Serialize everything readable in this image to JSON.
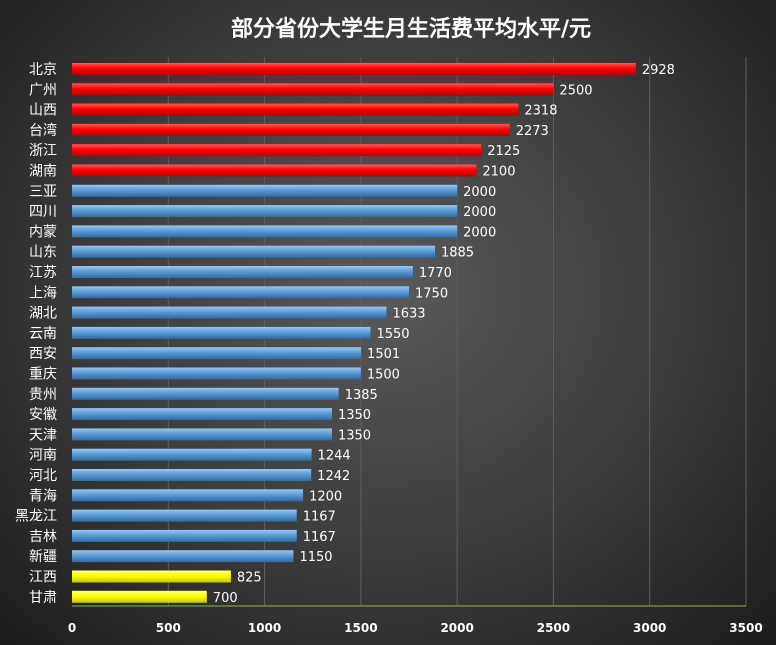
{
  "chart_data": {
    "type": "bar",
    "orientation": "horizontal",
    "title": "部分省份大学生月生活费平均水平/元",
    "xlabel": "",
    "ylabel": "",
    "xlim": [
      0,
      3500
    ],
    "xticks": [
      0,
      500,
      1000,
      1500,
      2000,
      2500,
      3000,
      3500
    ],
    "grid": true,
    "categories": [
      "北京",
      "广州",
      "山西",
      "台湾",
      "浙江",
      "湖南",
      "三亚",
      "四川",
      "内蒙",
      "山东",
      "江苏",
      "上海",
      "湖北",
      "云南",
      "西安",
      "重庆",
      "贵州",
      "安徽",
      "天津",
      "河南",
      "河北",
      "青海",
      "黑龙江",
      "吉林",
      "新疆",
      "江西",
      "甘肃"
    ],
    "values": [
      2928,
      2500,
      2318,
      2273,
      2125,
      2100,
      2000,
      2000,
      2000,
      1885,
      1770,
      1750,
      1633,
      1550,
      1501,
      1500,
      1385,
      1350,
      1350,
      1244,
      1242,
      1200,
      1167,
      1167,
      1150,
      825,
      700
    ],
    "bar_colors": [
      "#ff0000",
      "#ff0000",
      "#ff0000",
      "#ff0000",
      "#ff0000",
      "#ff0000",
      "#5b9bd5",
      "#5b9bd5",
      "#5b9bd5",
      "#5b9bd5",
      "#5b9bd5",
      "#5b9bd5",
      "#5b9bd5",
      "#5b9bd5",
      "#5b9bd5",
      "#5b9bd5",
      "#5b9bd5",
      "#5b9bd5",
      "#5b9bd5",
      "#5b9bd5",
      "#5b9bd5",
      "#5b9bd5",
      "#5b9bd5",
      "#5b9bd5",
      "#5b9bd5",
      "#ffff00",
      "#ffff00"
    ]
  }
}
